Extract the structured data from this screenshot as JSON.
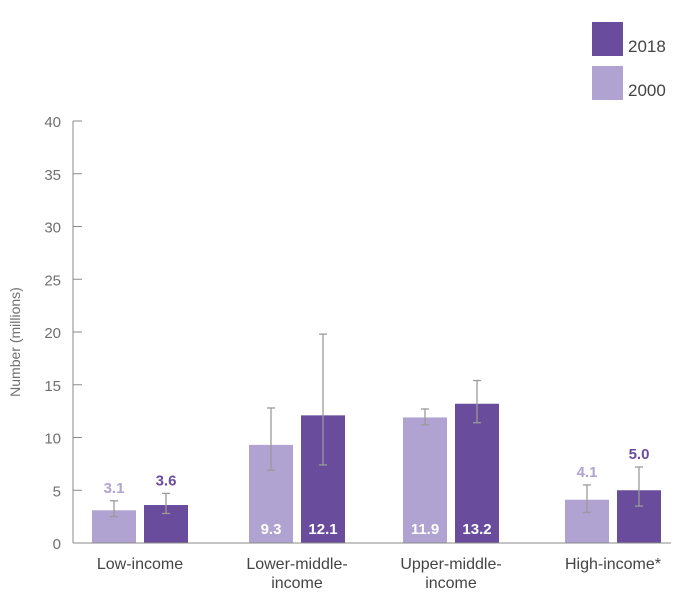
{
  "chart_data": {
    "type": "bar",
    "ylabel": "Number (millions)",
    "ylim": [
      0,
      40
    ],
    "yticks": [
      "0",
      "5",
      "10",
      "15",
      "20",
      "25",
      "30",
      "35",
      "40"
    ],
    "categories": [
      [
        "Low-income"
      ],
      [
        "Lower-middle-",
        "income"
      ],
      [
        "Upper-middle-",
        "income"
      ],
      [
        "High-income*"
      ]
    ],
    "series": [
      {
        "name": "2000",
        "color": "#b0a2d1",
        "values": [
          3.1,
          9.3,
          11.9,
          4.1
        ],
        "labels": [
          "3.1",
          "9.3",
          "11.9",
          "4.1"
        ],
        "error_low": [
          2.5,
          6.9,
          11.2,
          2.9
        ],
        "error_high": [
          4.0,
          12.8,
          12.7,
          5.5
        ]
      },
      {
        "name": "2018",
        "color": "#6a4c9c",
        "values": [
          3.6,
          12.1,
          13.2,
          5.0
        ],
        "labels": [
          "3.6",
          "12.1",
          "13.2",
          "5.0"
        ],
        "error_low": [
          2.8,
          7.4,
          11.4,
          3.5
        ],
        "error_high": [
          4.7,
          19.8,
          15.4,
          7.2
        ]
      }
    ],
    "legend": {
      "placement": "top-right",
      "order": [
        "2018",
        "2000"
      ]
    },
    "error_bar_color": "#9a9a9a",
    "axis_color": "#8a8a8a",
    "label_inside_color": "#ffffff",
    "label_inside_min_value": 6
  }
}
